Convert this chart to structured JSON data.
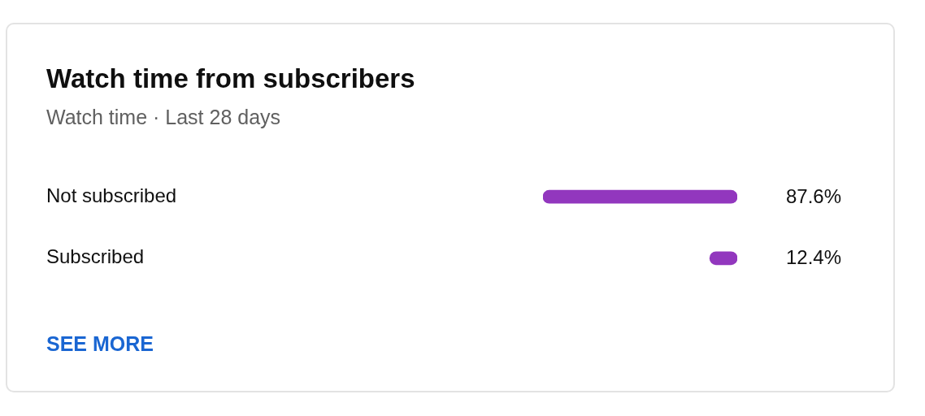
{
  "chart_data": {
    "type": "bar",
    "orientation": "horizontal",
    "title": "Watch time from subscribers",
    "subtitle": "Watch time · Last 28 days",
    "categories": [
      "Not subscribed",
      "Subscribed"
    ],
    "values": [
      87.6,
      12.4
    ],
    "value_labels": [
      "87.6%",
      "12.4%"
    ],
    "color": "#9237be",
    "tick_labels": "y",
    "grid": false,
    "legend": false,
    "annotations": [
      "SEE MORE"
    ]
  }
}
